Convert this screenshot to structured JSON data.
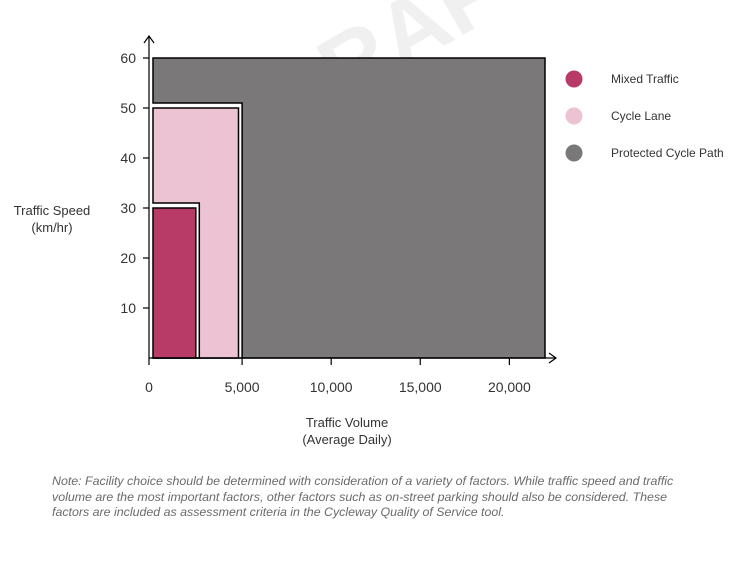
{
  "watermark": "DRAFT",
  "note": "Note: Facility choice should be determined with consideration of a variety of factors. While traffic speed and traffic volume are the most important factors, other factors such as on-street parking should also be considered. These factors are included as assessment criteria in the Cycleway Quality of Service tool.",
  "chart_data": {
    "type": "area",
    "title": "",
    "ylabel_lines": [
      "Traffic Speed",
      "(km/hr)"
    ],
    "xlabel_lines": [
      "Traffic Volume",
      "(Average Daily)"
    ],
    "xlim": [
      0,
      22000
    ],
    "ylim": [
      0,
      60
    ],
    "x_ticks": [
      0,
      5000,
      10000,
      15000,
      20000
    ],
    "x_tick_labels": [
      "0",
      "5,000",
      "10,000",
      "15,000",
      "20,000"
    ],
    "y_ticks": [
      10,
      20,
      30,
      40,
      50,
      60
    ],
    "y_tick_labels": [
      "10",
      "20",
      "30",
      "40",
      "50",
      "60"
    ],
    "grid": false,
    "legend_position": "right",
    "series": [
      {
        "name": "Protected Cycle Path",
        "color": "#7a7878",
        "polygon": [
          [
            0,
            0
          ],
          [
            22000,
            0
          ],
          [
            22000,
            60
          ],
          [
            0,
            60
          ],
          [
            0,
            51
          ],
          [
            5000,
            51
          ],
          [
            5000,
            0
          ]
        ]
      },
      {
        "name": "Cycle Lane",
        "color": "#ebc3d3",
        "polygon": [
          [
            0,
            0
          ],
          [
            4800,
            0
          ],
          [
            4800,
            50
          ],
          [
            0,
            50
          ],
          [
            0,
            31
          ],
          [
            2600,
            31
          ],
          [
            2600,
            0
          ]
        ]
      },
      {
        "name": "Mixed Traffic",
        "color": "#b73a67",
        "polygon": [
          [
            0,
            0
          ],
          [
            2400,
            0
          ],
          [
            2400,
            30
          ],
          [
            0,
            30
          ]
        ]
      }
    ],
    "legend_order": [
      "Mixed Traffic",
      "Cycle Lane",
      "Protected Cycle Path"
    ]
  }
}
